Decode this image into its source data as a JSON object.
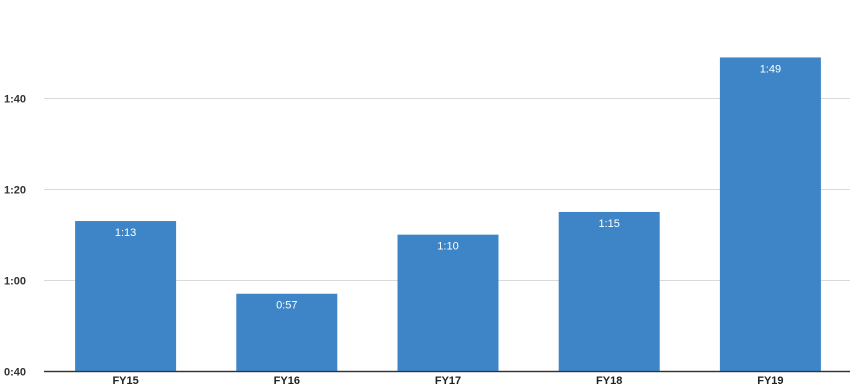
{
  "chart_data": {
    "type": "bar",
    "categories": [
      "FY15",
      "FY16",
      "FY17",
      "FY18",
      "FY19"
    ],
    "values": [
      73,
      57,
      70,
      75,
      109
    ],
    "value_labels": [
      "1:13",
      "0:57",
      "1:10",
      "1:15",
      "1:49"
    ],
    "value_unit": "seconds",
    "yticks": [
      40,
      60,
      80,
      100
    ],
    "ytick_labels": [
      "0:40",
      "1:00",
      "1:20",
      "1:40"
    ],
    "ylim": [
      40,
      119
    ],
    "title": "",
    "xlabel": "",
    "ylabel": "",
    "grid": true,
    "legend": "none",
    "colors": {
      "bar": "#3d85c6",
      "grid": "#d9d9d9",
      "axis": "#333333",
      "background": "#ffffff"
    }
  }
}
